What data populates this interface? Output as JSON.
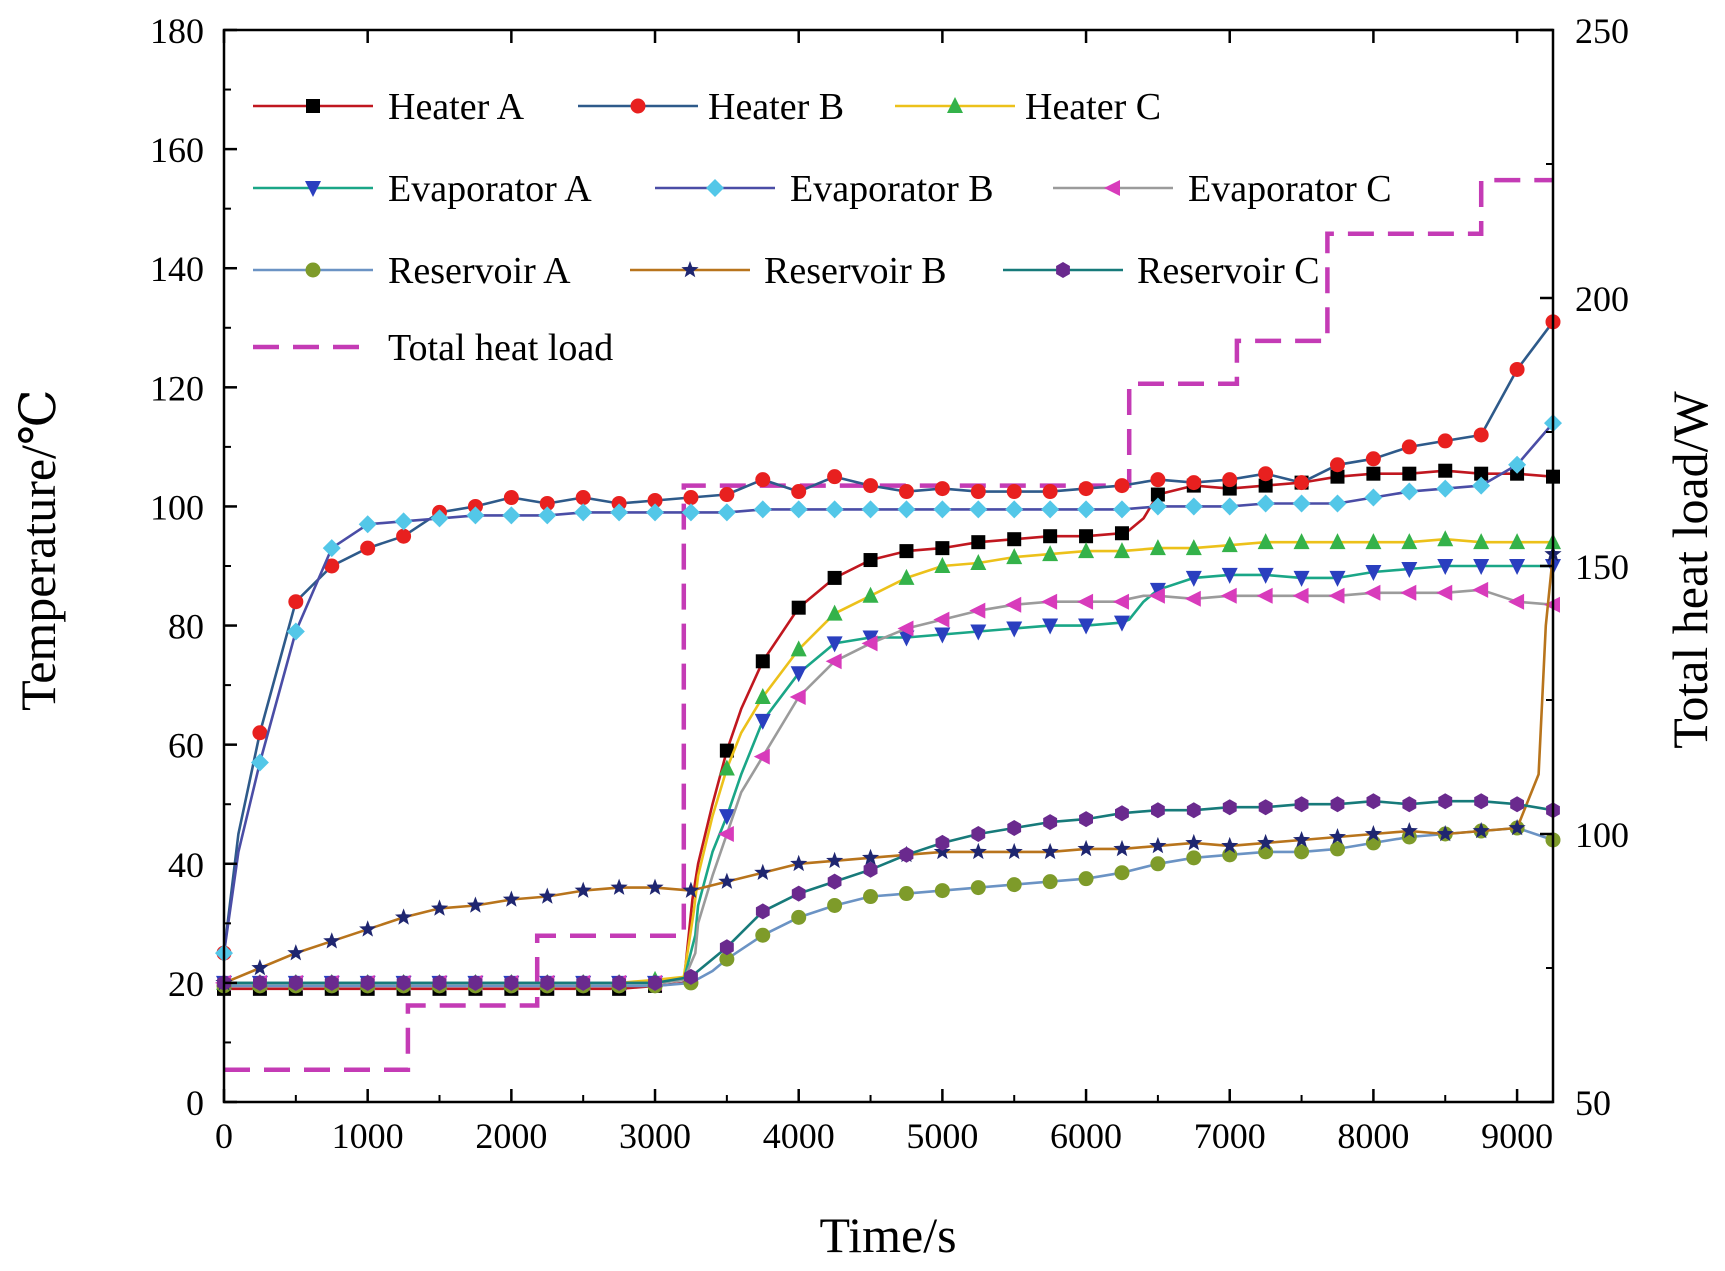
{
  "chart_data": {
    "type": "line",
    "xlabel": "Time/s",
    "ylabel": "Temperature/℃",
    "y2label": "Total heat load/W",
    "xlim": [
      0,
      9250
    ],
    "ylim": [
      0,
      180
    ],
    "y2lim": [
      50,
      250
    ],
    "xticks": [
      0,
      1000,
      2000,
      3000,
      4000,
      5000,
      6000,
      7000,
      8000,
      9000
    ],
    "yticks": [
      0,
      20,
      40,
      60,
      80,
      100,
      120,
      140,
      160,
      180
    ],
    "y2ticks": [
      50,
      100,
      150,
      200,
      250
    ],
    "legend_position": "top-left",
    "series": [
      {
        "name": "Heater A",
        "color": "#c0171f",
        "marker": "square",
        "marker_color": "#000000",
        "x": [
          0,
          250,
          500,
          750,
          1000,
          1250,
          1500,
          1750,
          2000,
          2250,
          2500,
          2750,
          3000,
          3200,
          3260,
          3300,
          3400,
          3500,
          3600,
          3750,
          4000,
          4250,
          4500,
          4750,
          5000,
          5250,
          5500,
          5750,
          6000,
          6250,
          6300,
          6400,
          6500,
          6750,
          7000,
          7250,
          7500,
          7750,
          8000,
          8250,
          8500,
          8750,
          9000,
          9250
        ],
        "y": [
          19,
          19,
          19,
          19,
          19,
          19,
          19,
          19,
          19,
          19,
          19,
          19,
          19.5,
          20,
          34,
          40,
          50,
          59,
          66,
          74,
          83,
          88,
          91,
          92.5,
          93,
          94,
          94.5,
          95,
          95,
          95.5,
          96,
          98,
          102,
          103.5,
          103,
          103.5,
          104,
          105,
          105.5,
          105.5,
          106,
          105.5,
          105.5,
          105
        ]
      },
      {
        "name": "Heater B",
        "color": "#2e5a8a",
        "marker": "circle",
        "marker_color": "#e8201f",
        "x": [
          0,
          100,
          250,
          500,
          750,
          1000,
          1250,
          1500,
          1750,
          2000,
          2250,
          2500,
          2750,
          3000,
          3250,
          3500,
          3750,
          4000,
          4250,
          4500,
          4750,
          5000,
          5250,
          5500,
          5750,
          6000,
          6250,
          6500,
          6750,
          7000,
          7250,
          7500,
          7750,
          8000,
          8250,
          8500,
          8750,
          9000,
          9250
        ],
        "y": [
          25,
          45,
          62,
          84,
          90,
          93,
          95,
          99,
          100,
          101.5,
          100.5,
          101.5,
          100.5,
          101,
          101.5,
          102,
          104.5,
          102.5,
          105,
          103.5,
          102.5,
          103,
          102.5,
          102.5,
          102.5,
          103,
          103.5,
          104.5,
          104,
          104.5,
          105.5,
          104,
          107,
          108,
          110,
          111,
          112,
          123,
          131
        ]
      },
      {
        "name": "Heater C",
        "color": "#ecc11a",
        "marker": "triangle-up",
        "marker_color": "#34b24a",
        "x": [
          0,
          250,
          500,
          750,
          1000,
          1250,
          1500,
          1750,
          2000,
          2250,
          2500,
          2750,
          3000,
          3200,
          3270,
          3300,
          3400,
          3500,
          3600,
          3750,
          4000,
          4250,
          4500,
          4750,
          5000,
          5250,
          5500,
          5750,
          6000,
          6250,
          6500,
          6750,
          7000,
          7250,
          7500,
          7750,
          8000,
          8250,
          8500,
          8750,
          9000,
          9250
        ],
        "y": [
          20,
          20,
          20,
          20,
          20,
          20,
          20,
          20,
          20,
          20,
          20,
          20,
          20.5,
          21,
          32,
          38,
          48,
          56,
          62,
          68,
          76,
          82,
          85,
          88,
          90,
          90.5,
          91.5,
          92,
          92.5,
          92.5,
          93,
          93,
          93.5,
          94,
          94,
          94,
          94,
          94,
          94.5,
          94,
          94,
          94
        ]
      },
      {
        "name": "Evaporator A",
        "color": "#1aa687",
        "marker": "triangle-down",
        "marker_color": "#2a3fbf",
        "x": [
          0,
          250,
          500,
          750,
          1000,
          1250,
          1500,
          1750,
          2000,
          2250,
          2500,
          2750,
          3000,
          3200,
          3280,
          3300,
          3400,
          3500,
          3600,
          3750,
          4000,
          4250,
          4500,
          4750,
          5000,
          5250,
          5500,
          5750,
          6000,
          6250,
          6300,
          6400,
          6500,
          6750,
          7000,
          7250,
          7500,
          7750,
          8000,
          8250,
          8500,
          8750,
          9000,
          9250
        ],
        "y": [
          20,
          20,
          20,
          20,
          20,
          20,
          20,
          20,
          20,
          20,
          20,
          20,
          20,
          20.5,
          28,
          33,
          42,
          48,
          55,
          64,
          72,
          77,
          78,
          78,
          78.5,
          79,
          79.5,
          80,
          80,
          80.5,
          81,
          84,
          86,
          88,
          88.5,
          88.5,
          88,
          88,
          89,
          89.5,
          90,
          90,
          90,
          90
        ]
      },
      {
        "name": "Evaporator B",
        "color": "#4a4da6",
        "marker": "diamond",
        "marker_color": "#53c7e8",
        "x": [
          0,
          100,
          250,
          500,
          750,
          1000,
          1250,
          1500,
          1750,
          2000,
          2250,
          2500,
          2750,
          3000,
          3250,
          3500,
          3750,
          4000,
          4250,
          4500,
          4750,
          5000,
          5250,
          5500,
          5750,
          6000,
          6250,
          6500,
          6750,
          7000,
          7250,
          7500,
          7750,
          8000,
          8250,
          8500,
          8750,
          9000,
          9250
        ],
        "y": [
          25,
          42,
          57,
          79,
          93,
          97,
          97.5,
          98,
          98.5,
          98.5,
          98.5,
          99,
          99,
          99,
          99,
          99,
          99.5,
          99.5,
          99.5,
          99.5,
          99.5,
          99.5,
          99.5,
          99.5,
          99.5,
          99.5,
          99.5,
          100,
          100,
          100,
          100.5,
          100.5,
          100.5,
          101.5,
          102.5,
          103,
          103.5,
          107,
          114
        ]
      },
      {
        "name": "Evaporator C",
        "color": "#9b9b9b",
        "marker": "triangle-left",
        "marker_color": "#d83bbb",
        "x": [
          0,
          250,
          500,
          750,
          1000,
          1250,
          1500,
          1750,
          2000,
          2250,
          2500,
          2750,
          3000,
          3200,
          3280,
          3300,
          3400,
          3500,
          3600,
          3750,
          4000,
          4250,
          4500,
          4750,
          5000,
          5250,
          5500,
          5750,
          6000,
          6250,
          6300,
          6400,
          6500,
          6750,
          7000,
          7250,
          7500,
          7750,
          8000,
          8250,
          8500,
          8750,
          9000,
          9250
        ],
        "y": [
          20,
          20,
          20,
          20,
          20,
          20,
          20,
          20,
          20,
          20,
          20,
          20,
          20,
          20.5,
          25,
          30,
          38,
          45,
          52,
          58,
          68,
          74,
          77,
          79.5,
          81,
          82.5,
          83.5,
          84,
          84,
          84,
          84.5,
          85,
          85,
          84.5,
          85,
          85,
          85,
          85,
          85.5,
          85.5,
          85.5,
          86,
          84,
          83.5
        ]
      },
      {
        "name": "Reservoir A",
        "color": "#6b93c4",
        "marker": "circle",
        "marker_color": "#7e9b2a",
        "x": [
          0,
          250,
          500,
          750,
          1000,
          1250,
          1500,
          1750,
          2000,
          2250,
          2500,
          2750,
          3000,
          3250,
          3400,
          3500,
          3750,
          4000,
          4250,
          4500,
          4750,
          5000,
          5250,
          5500,
          5750,
          6000,
          6250,
          6500,
          6750,
          7000,
          7250,
          7500,
          7750,
          8000,
          8250,
          8500,
          8750,
          9000,
          9250
        ],
        "y": [
          19.5,
          19.5,
          19.5,
          19.5,
          19.5,
          19.5,
          19.5,
          19.5,
          19.5,
          19.5,
          19.5,
          19.5,
          19.5,
          20,
          22,
          24,
          28,
          31,
          33,
          34.5,
          35,
          35.5,
          36,
          36.5,
          37,
          37.5,
          38.5,
          40,
          41,
          41.5,
          42,
          42,
          42.5,
          43.5,
          44.5,
          45,
          45.5,
          46,
          44
        ]
      },
      {
        "name": "Reservoir B",
        "color": "#b8741c",
        "marker": "star",
        "marker_color": "#1f2670",
        "x": [
          0,
          250,
          500,
          750,
          1000,
          1250,
          1500,
          1750,
          2000,
          2250,
          2500,
          2750,
          3000,
          3250,
          3500,
          3750,
          4000,
          4250,
          4500,
          4750,
          5000,
          5250,
          5500,
          5750,
          6000,
          6250,
          6500,
          6750,
          7000,
          7250,
          7500,
          7750,
          8000,
          8250,
          8500,
          8750,
          9000,
          9150,
          9200,
          9250
        ],
        "y": [
          20,
          22.5,
          25,
          27,
          29,
          31,
          32.5,
          33,
          34,
          34.5,
          35.5,
          36,
          36,
          35.5,
          37,
          38.5,
          40,
          40.5,
          41,
          41.5,
          42,
          42,
          42,
          42,
          42.5,
          42.5,
          43,
          43.5,
          43,
          43.5,
          44,
          44.5,
          45,
          45.5,
          45,
          45.5,
          46,
          55,
          80,
          92
        ]
      },
      {
        "name": "Reservoir C",
        "color": "#177a7a",
        "marker": "hexagon",
        "marker_color": "#6a2a8e",
        "x": [
          0,
          250,
          500,
          750,
          1000,
          1250,
          1500,
          1750,
          2000,
          2250,
          2500,
          2750,
          3000,
          3250,
          3400,
          3500,
          3750,
          4000,
          4250,
          4500,
          4750,
          5000,
          5250,
          5500,
          5750,
          6000,
          6250,
          6500,
          6750,
          7000,
          7250,
          7500,
          7750,
          8000,
          8250,
          8500,
          8750,
          9000,
          9250
        ],
        "y": [
          20,
          20,
          20,
          20,
          20,
          20,
          20,
          20,
          20,
          20,
          20,
          20,
          20,
          21,
          24,
          26,
          32,
          35,
          37,
          39,
          41.5,
          43.5,
          45,
          46,
          47,
          47.5,
          48.5,
          49,
          49,
          49.5,
          49.5,
          50,
          50,
          50.5,
          50,
          50.5,
          50.5,
          50,
          49
        ]
      }
    ],
    "secondary_series": [
      {
        "name": "Total heat load",
        "color": "#c43bb5",
        "style": "dashed",
        "x": [
          0,
          1280,
          1280,
          2180,
          2180,
          3200,
          3200,
          6300,
          6300,
          7050,
          7050,
          7680,
          7680,
          8750,
          8750,
          9250
        ],
        "y": [
          56,
          56,
          68,
          68,
          81,
          81,
          165,
          165,
          184,
          184,
          192,
          192,
          212,
          212,
          222,
          222
        ]
      }
    ]
  }
}
